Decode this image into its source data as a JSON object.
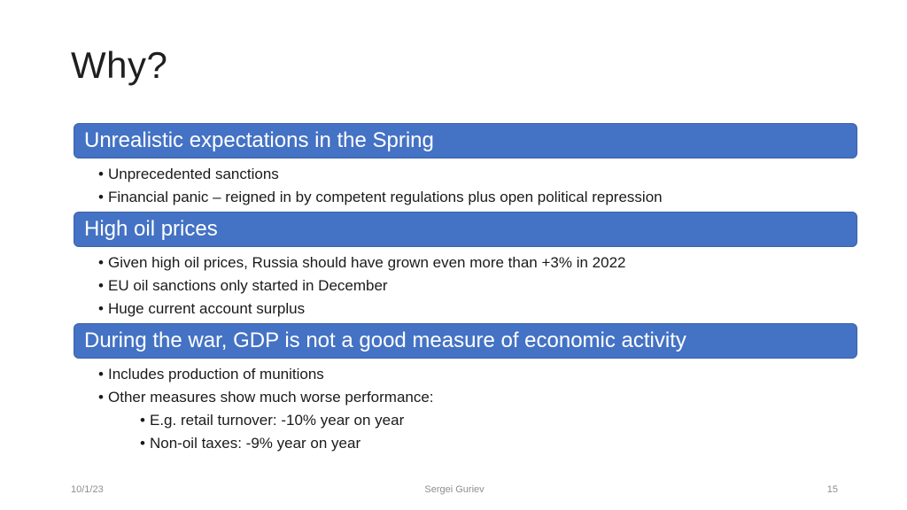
{
  "slide": {
    "title": "Why?",
    "sections": [
      {
        "header": "Unrealistic expectations in the Spring",
        "bullets": [
          {
            "level": 1,
            "text": "Unprecedented sanctions"
          },
          {
            "level": 1,
            "text": "Financial panic – reigned in by competent regulations plus open political repression"
          }
        ]
      },
      {
        "header": "High oil prices",
        "bullets": [
          {
            "level": 1,
            "text": "Given high oil prices, Russia should have grown even more than +3% in 2022"
          },
          {
            "level": 1,
            "text": "EU oil sanctions only started in December"
          },
          {
            "level": 1,
            "text": "Huge current account surplus"
          }
        ]
      },
      {
        "header": "During the war, GDP is not a good measure of economic activity",
        "bullets": [
          {
            "level": 1,
            "text": "Includes production of munitions"
          },
          {
            "level": 1,
            "text": "Other measures show much worse performance:"
          },
          {
            "level": 2,
            "text": "E.g. retail turnover: -10% year on year"
          },
          {
            "level": 2,
            "text": "Non-oil taxes: -9% year on year"
          }
        ]
      }
    ],
    "footer": {
      "date": "10/1/23",
      "author": "Sergei Guriev",
      "page_number": "15"
    },
    "colors": {
      "banner_bg": "#4472C4",
      "banner_border": "#3B62A9",
      "banner_text": "#FFFFFF",
      "body_text": "#1A1A1A",
      "footer_text": "#8E8E8E",
      "background": "#FFFFFF"
    }
  }
}
